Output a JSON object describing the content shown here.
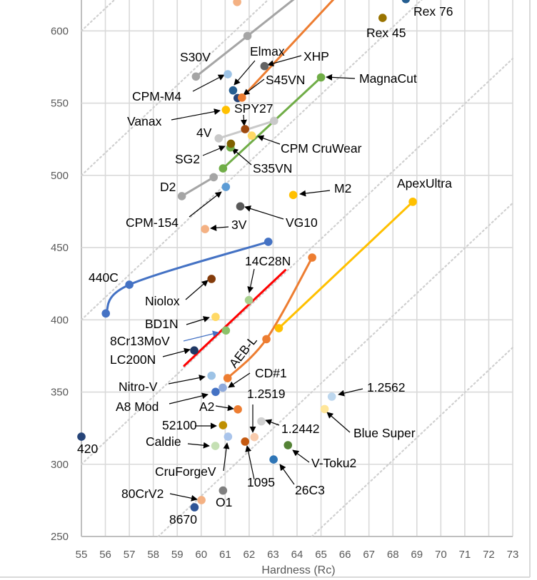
{
  "chart_data": {
    "type": "scatter",
    "xlabel": "Hardness (Rc)",
    "ylabel": "",
    "xlim": [
      55,
      73
    ],
    "ylim": [
      250,
      621
    ],
    "x_ticks": [
      "55",
      "56",
      "57",
      "58",
      "59",
      "60",
      "61",
      "62",
      "63",
      "64",
      "65",
      "66",
      "67",
      "68",
      "69",
      "70",
      "71",
      "72",
      "73"
    ],
    "y_ticks": [
      "250",
      "300",
      "350",
      "400",
      "450",
      "500",
      "550",
      "600"
    ],
    "grid": true,
    "diagonal_reference_lines": {
      "style": "dotted",
      "intercepts_at_55": [
        100,
        200,
        300,
        400,
        500,
        600
      ],
      "slope": 15.6,
      "color": "#D0D0D0"
    },
    "points": [
      {
        "label": "",
        "x": 61.5,
        "y": 620,
        "color": "#F4B183"
      },
      {
        "label": "Rex 76",
        "x": 68.54,
        "y": 622,
        "color": "#255E91"
      },
      {
        "label": "Rex 45",
        "x": 67.57,
        "y": 609,
        "color": "#997300"
      },
      {
        "label": "S30V",
        "x": 59.78,
        "y": 568.4,
        "color": "#A5A5A5"
      },
      {
        "label": "",
        "x": 61.93,
        "y": 596.5,
        "color": "#A5A5A5"
      },
      {
        "label": "CPM-M4",
        "x": 61.11,
        "y": 570,
        "color": "#9DC3E6"
      },
      {
        "label": "Elmax",
        "x": 61.33,
        "y": 558.8,
        "color": "#255E91"
      },
      {
        "label": "XHP",
        "x": 62.64,
        "y": 575.6,
        "color": "#636363"
      },
      {
        "label": "",
        "x": 61.52,
        "y": 553.5,
        "color": "#264478"
      },
      {
        "label": "S45VN",
        "x": 61.7,
        "y": 553.8,
        "color": "#ED7D31"
      },
      {
        "label": "MagnaCut",
        "x": 65.0,
        "y": 567.8,
        "color": "#70AD47"
      },
      {
        "label": "Vanax",
        "x": 61.03,
        "y": 545.3,
        "color": "#FFC000"
      },
      {
        "label": "SPY27",
        "x": 61.83,
        "y": 532,
        "color": "#9E480E"
      },
      {
        "label": "4V",
        "x": 60.73,
        "y": 525.6,
        "color": "#C9C9C9"
      },
      {
        "label": "",
        "x": 63.04,
        "y": 537.7,
        "color": "#C9C9C9"
      },
      {
        "label": "CPM CruWear",
        "x": 62.11,
        "y": 527.5,
        "color": "#FFD966"
      },
      {
        "label": "S35VN",
        "x": 61.22,
        "y": 519.3,
        "color": "#70AD47"
      },
      {
        "label": "SG2",
        "x": 61.24,
        "y": 521.9,
        "color": "#7F6000"
      },
      {
        "label": "",
        "x": 60.91,
        "y": 504.8,
        "color": "#70AD47"
      },
      {
        "label": "D2",
        "x": 59.19,
        "y": 485.6,
        "color": "#A5A5A5"
      },
      {
        "label": "",
        "x": 60.52,
        "y": 498.7,
        "color": "#A5A5A5"
      },
      {
        "label": "CPM-154",
        "x": 61.03,
        "y": 492,
        "color": "#5B9BD5"
      },
      {
        "label": "M2",
        "x": 63.84,
        "y": 486.4,
        "color": "#FFC000"
      },
      {
        "label": "VG10",
        "x": 61.63,
        "y": 478.5,
        "color": "#595959"
      },
      {
        "label": "3V",
        "x": 60.16,
        "y": 462.8,
        "color": "#F4B183"
      },
      {
        "label": "440C",
        "x": 56.02,
        "y": 404.4,
        "color": "#4472C4"
      },
      {
        "label": "",
        "x": 57.0,
        "y": 424.3,
        "color": "#4472C4"
      },
      {
        "label": "",
        "x": 62.8,
        "y": 454,
        "color": "#4472C4"
      },
      {
        "label": "Niolox",
        "x": 60.43,
        "y": 428.3,
        "color": "#843C0C"
      },
      {
        "label": "14C28N",
        "x": 61.99,
        "y": 413.6,
        "color": "#A9D18E"
      },
      {
        "label": "BD1N",
        "x": 60.6,
        "y": 402,
        "color": "#FFD966"
      },
      {
        "label": "8Cr13MoV",
        "x": 61.03,
        "y": 392.6,
        "color": "#8BC26A"
      },
      {
        "label": "LC200N",
        "x": 59.71,
        "y": 378.8,
        "color": "#203864"
      },
      {
        "label": "AEB-L",
        "x": 61.1,
        "y": 359.6,
        "color": "#ED7D31"
      },
      {
        "label": "",
        "x": 62.72,
        "y": 386.6,
        "color": "#ED7D31"
      },
      {
        "label": "",
        "x": 64.63,
        "y": 443.1,
        "color": "#ED7D31"
      },
      {
        "label": "",
        "x": 63.24,
        "y": 394.2,
        "color": "#FFC000"
      },
      {
        "label": "ApexUltra",
        "x": 68.83,
        "y": 481.7,
        "color": "#FFC000"
      },
      {
        "label": "Nitro-V",
        "x": 60.43,
        "y": 361.3,
        "color": "#9DC3E6"
      },
      {
        "label": "CD#1",
        "x": 60.9,
        "y": 353,
        "color": "#8FAADC"
      },
      {
        "label": "A8 Mod",
        "x": 60.6,
        "y": 350.1,
        "color": "#4472C4"
      },
      {
        "label": "1.2562",
        "x": 65.45,
        "y": 346.8,
        "color": "#BDD7EE"
      },
      {
        "label": "A2",
        "x": 61.53,
        "y": 338,
        "color": "#ED7D31"
      },
      {
        "label": "Blue Super",
        "x": 65.15,
        "y": 338.2,
        "color": "#FFE699"
      },
      {
        "label": "1.2442",
        "x": 62.51,
        "y": 329.7,
        "color": "#D0D0D0"
      },
      {
        "label": "52100",
        "x": 60.91,
        "y": 327,
        "color": "#BF8F00"
      },
      {
        "label": "420",
        "x": 55,
        "y": 319.1,
        "color": "#264478"
      },
      {
        "label": "CruForgeV",
        "x": 61.12,
        "y": 319.1,
        "color": "#A9C4EB"
      },
      {
        "label": "1.2519",
        "x": 62.22,
        "y": 318.8,
        "color": "#F8CBAD"
      },
      {
        "label": "Caldie",
        "x": 60.59,
        "y": 312.7,
        "color": "#C5E0B4"
      },
      {
        "label": "1095",
        "x": 61.83,
        "y": 315.7,
        "color": "#C55A11"
      },
      {
        "label": "V-Toku2",
        "x": 63.62,
        "y": 313.2,
        "color": "#548235"
      },
      {
        "label": "26C3",
        "x": 63.02,
        "y": 303.3,
        "color": "#2E75B6"
      },
      {
        "label": "O1",
        "x": 60.91,
        "y": 281.8,
        "color": "#7F7F7F"
      },
      {
        "label": "80CrV2",
        "x": 60.01,
        "y": 275.2,
        "color": "#F4B183"
      },
      {
        "label": "8670",
        "x": 59.72,
        "y": 270.2,
        "color": "#2F5597"
      }
    ],
    "lines": [
      {
        "color": "#A5A5A5",
        "smooth": false,
        "x": [
          59.78,
          61.93,
          64.1
        ],
        "y": [
          568.4,
          596.5,
          625
        ]
      },
      {
        "color": "#ED7D31",
        "smooth": false,
        "x": [
          61.7,
          65.7
        ],
        "y": [
          553.8,
          625
        ]
      },
      {
        "color": "#70AD47",
        "smooth": false,
        "x": [
          60.91,
          65.0
        ],
        "y": [
          504.8,
          567.8
        ]
      },
      {
        "color": "#C9C9C9",
        "smooth": false,
        "x": [
          60.73,
          63.04
        ],
        "y": [
          525.6,
          537.7
        ]
      },
      {
        "color": "#A5A5A5",
        "smooth": false,
        "x": [
          59.19,
          60.52
        ],
        "y": [
          485.6,
          498.7
        ]
      },
      {
        "color": "#4472C4",
        "smooth": true,
        "x": [
          56.02,
          57.0,
          62.8
        ],
        "y": [
          404.4,
          424.3,
          454
        ]
      },
      {
        "color": "#ED7D31",
        "smooth": true,
        "x": [
          61.1,
          62.72,
          64.63
        ],
        "y": [
          359.6,
          386.6,
          443.1
        ]
      },
      {
        "color": "#FFC000",
        "smooth": false,
        "x": [
          63.24,
          68.83
        ],
        "y": [
          394.2,
          481.7
        ]
      },
      {
        "color": "#FF0000",
        "smooth": false,
        "x": [
          59.29,
          63.51
        ],
        "y": [
          368.2,
          434.4
        ]
      }
    ]
  }
}
